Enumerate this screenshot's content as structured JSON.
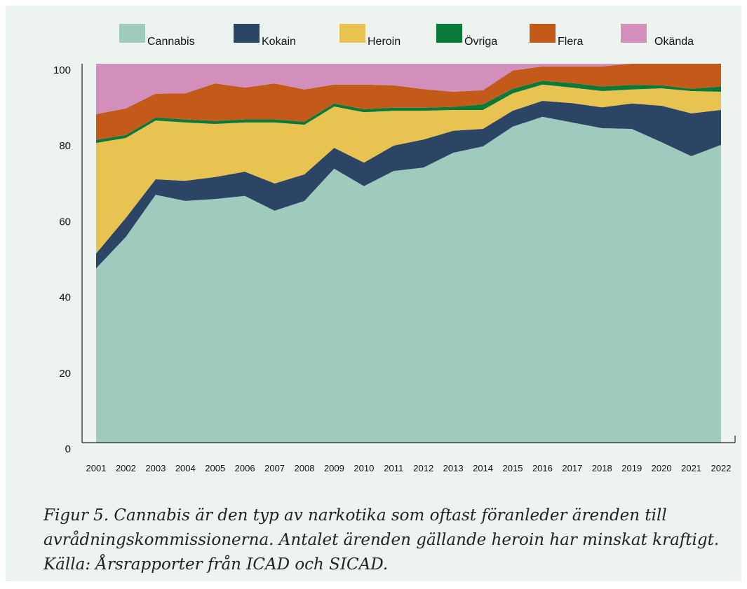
{
  "chart_data": {
    "type": "stacked-area",
    "categories": [
      "2001",
      "2002",
      "2003",
      "2004",
      "2005",
      "2006",
      "2007",
      "2008",
      "2009",
      "2010",
      "2011",
      "2012",
      "2013",
      "2014",
      "2015",
      "2016",
      "2017",
      "2018",
      "2019",
      "2020",
      "2021",
      "2022"
    ],
    "series": [
      {
        "name": "Cannabis",
        "color": "#9ecbbe",
        "values": [
          46.0,
          54.3,
          65.4,
          63.8,
          64.3,
          65.1,
          61.2,
          63.8,
          72.3,
          67.7,
          71.7,
          72.6,
          76.5,
          78.2,
          83.4,
          86.0,
          84.5,
          83.0,
          82.8,
          79.3,
          75.6,
          78.6
        ]
      },
      {
        "name": "Kokain",
        "color": "#2d4565",
        "values": [
          3.9,
          5.0,
          4.1,
          5.3,
          5.8,
          6.4,
          7.2,
          7.0,
          5.5,
          6.2,
          6.7,
          7.4,
          5.8,
          4.6,
          4.2,
          4.2,
          5.1,
          5.5,
          6.7,
          9.6,
          11.3,
          9.2
        ]
      },
      {
        "name": "Heroin",
        "color": "#e9c352",
        "values": [
          29.2,
          21.1,
          15.5,
          15.4,
          14.0,
          13.0,
          16.1,
          13.1,
          10.9,
          13.3,
          9.2,
          7.6,
          5.5,
          5.0,
          4.6,
          4.3,
          4.1,
          4.3,
          3.7,
          4.6,
          5.9,
          4.8
        ]
      },
      {
        "name": "Övriga",
        "color": "#0a7a3a",
        "values": [
          0.8,
          0.8,
          0.8,
          0.8,
          0.8,
          0.8,
          0.8,
          0.8,
          0.8,
          0.8,
          0.8,
          0.8,
          0.8,
          1.5,
          1.2,
          1.0,
          1.2,
          1.2,
          1.2,
          0.8,
          0.6,
          1.4
        ]
      },
      {
        "name": "Flera",
        "color": "#c45a1a",
        "values": [
          6.8,
          7.0,
          6.3,
          6.9,
          9.9,
          8.4,
          9.5,
          8.5,
          5.0,
          6.5,
          5.9,
          4.9,
          4.0,
          3.7,
          4.8,
          3.8,
          4.4,
          5.3,
          5.6,
          5.7,
          6.6,
          6.0
        ]
      },
      {
        "name": "Okända",
        "color": "#d28fbb",
        "values": [
          13.3,
          11.8,
          7.9,
          7.8,
          5.2,
          6.3,
          5.2,
          6.8,
          5.5,
          5.5,
          5.7,
          6.7,
          7.4,
          7.0,
          1.8,
          0.7,
          0.7,
          0.7,
          0,
          0,
          0,
          0
        ]
      }
    ],
    "ylim": [
      0,
      100
    ],
    "yticks": [
      0,
      20,
      40,
      60,
      80,
      100
    ],
    "caption": [
      "Figur 5. Cannabis är den typ av narkotika som oftast föranleder ärenden till",
      "avrådningskommissionerna. Antalet ärenden gällande heroin har minskat kraftigt.",
      "Källa: Årsrapporter från ICAD och SICAD."
    ]
  }
}
